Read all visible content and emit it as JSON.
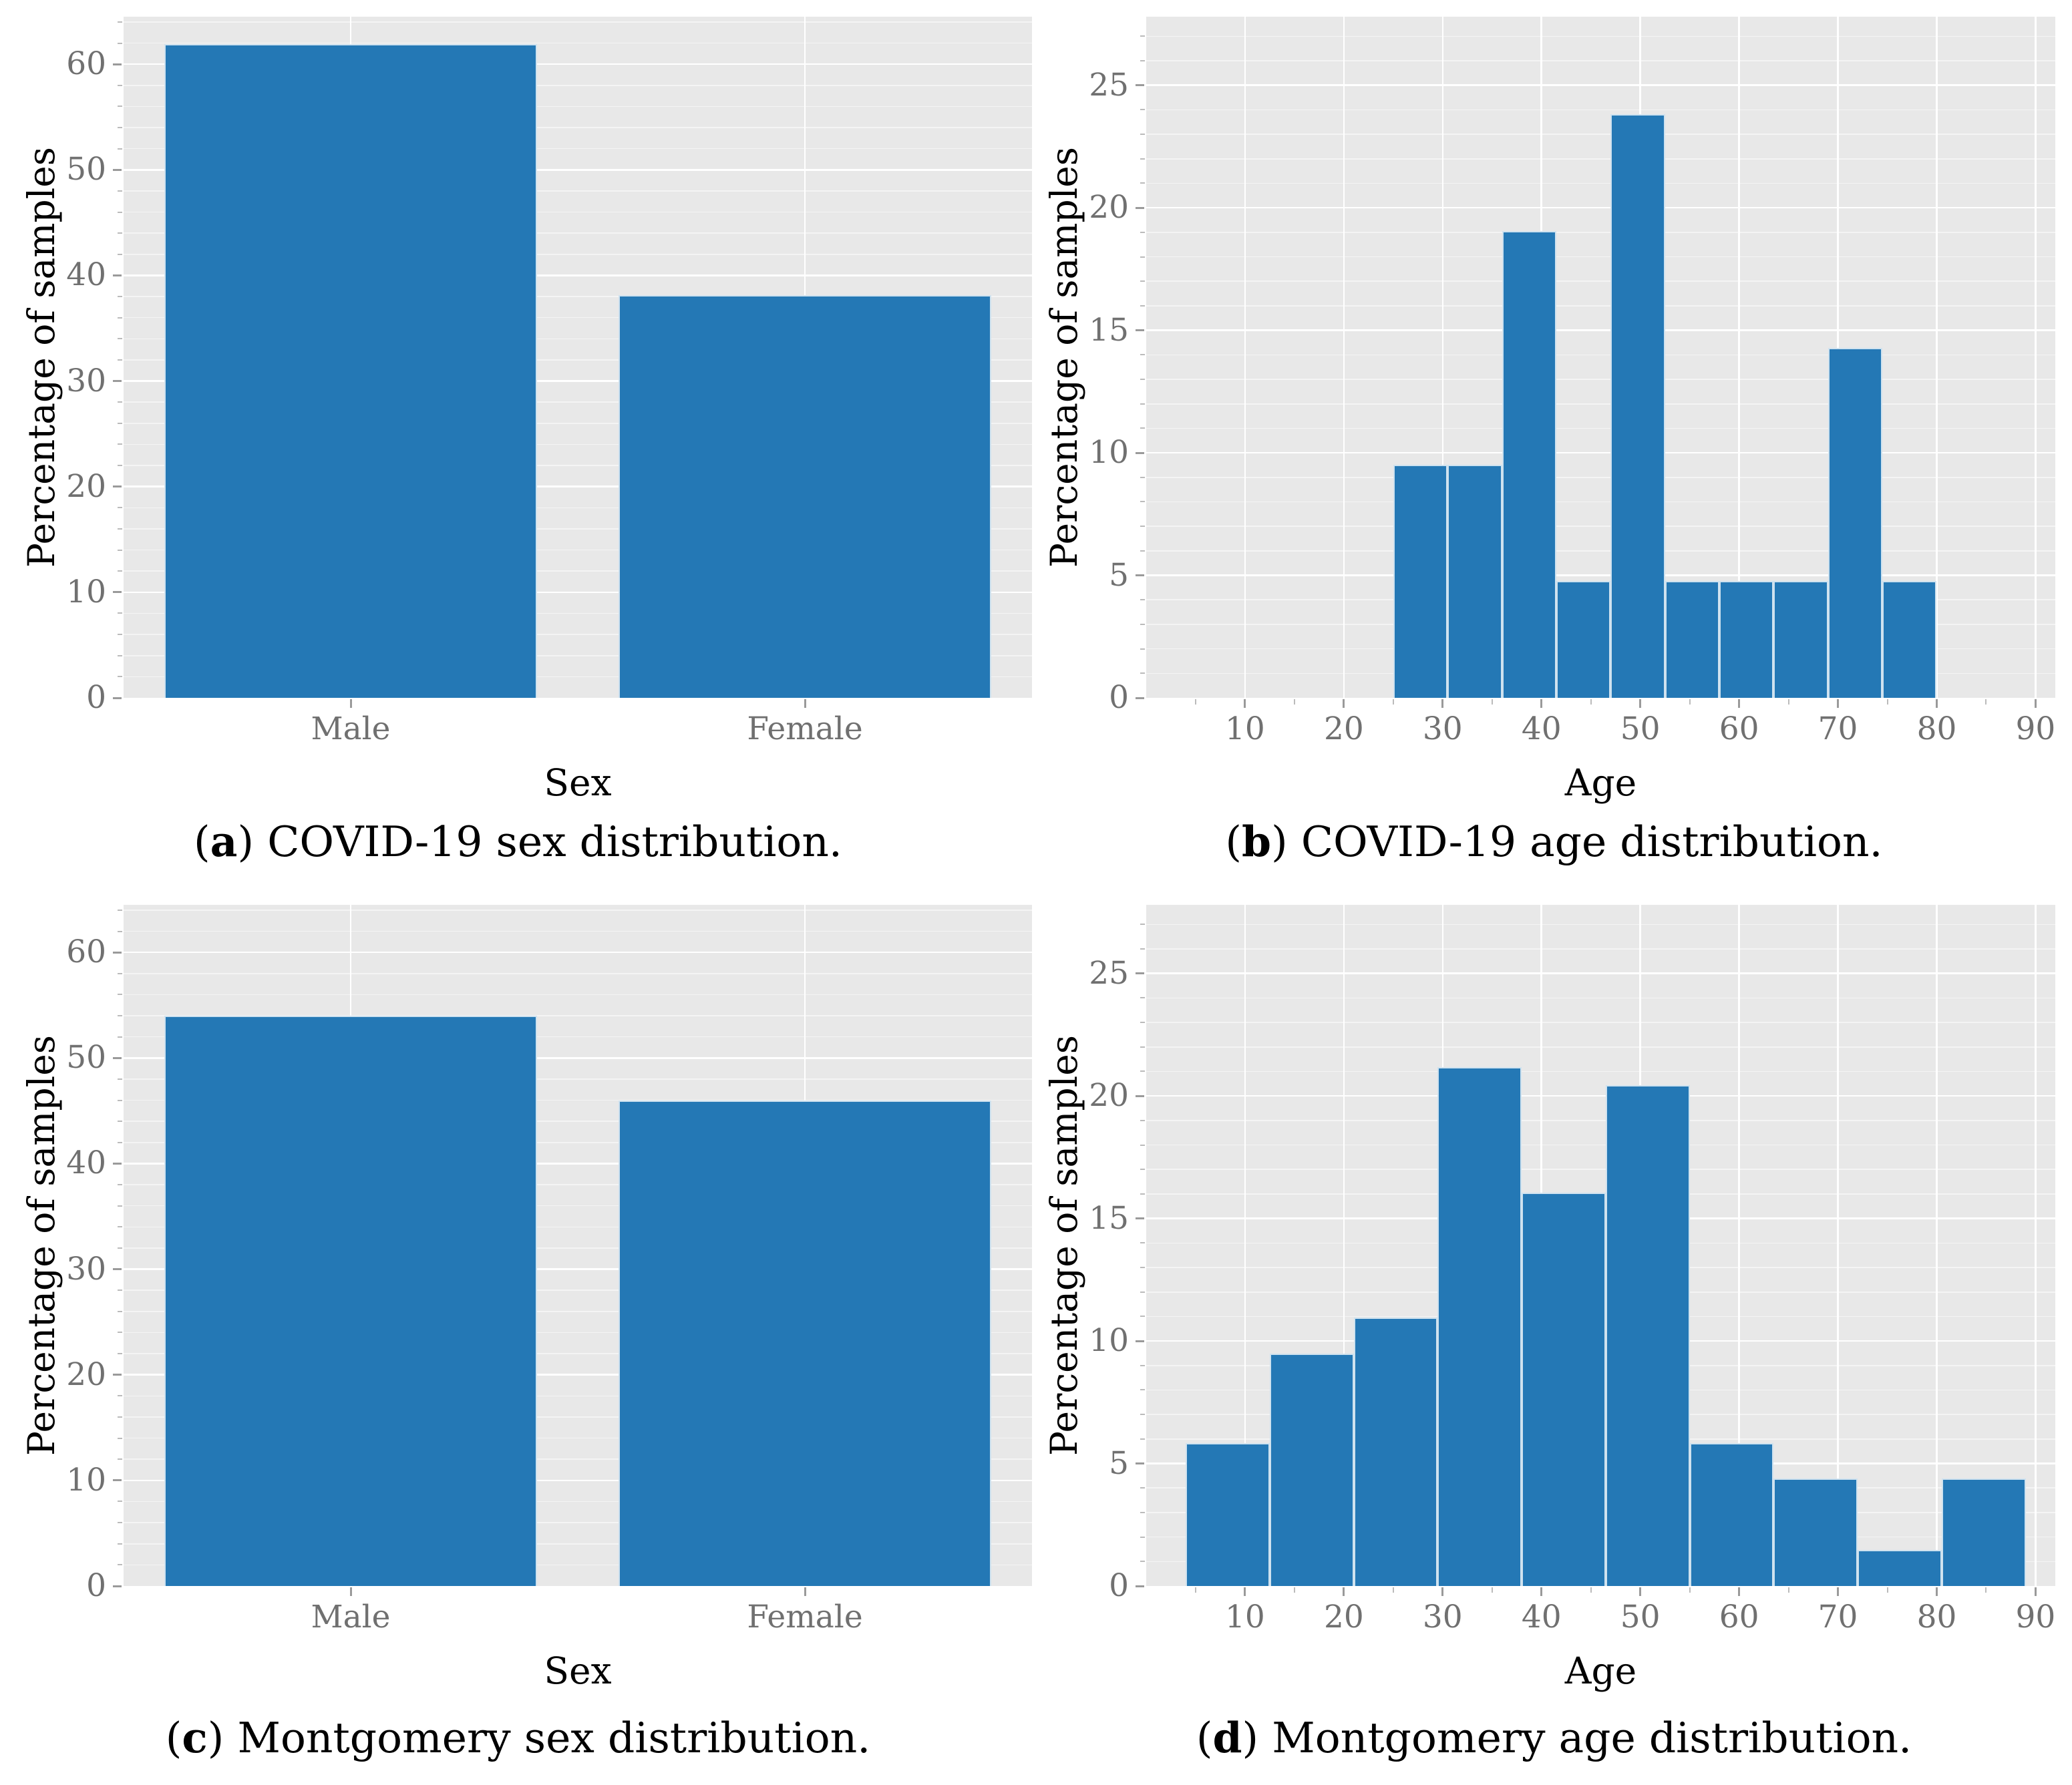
{
  "style": {
    "bar_color": "#2478b5",
    "bar_edge_color": "#cfe2ef",
    "panel_bg": "#e8e8e8",
    "grid_major_color": "#ffffff",
    "grid_minor_color": "#f4f4f4",
    "tick_label_color": "#707070",
    "tick_mark_major_color": "#9a9a9a",
    "tick_mark_minor_color": "#bbbbbb",
    "text_color": "#000000",
    "page_bg": "#ffffff"
  },
  "chart_data": [
    {
      "id": "a",
      "type": "bar",
      "title": "COVID-19 sex distribution",
      "categories": [
        "Male",
        "Female"
      ],
      "values": [
        61.9,
        38.1
      ],
      "xlabel": "Sex",
      "ylabel": "Percentage of samples",
      "ylim": [
        0,
        64.5
      ],
      "yticks": [
        0,
        10,
        20,
        30,
        40,
        50,
        60
      ],
      "y_minor_step": 2,
      "grid": "major+minor",
      "legend": "none",
      "caption": {
        "open": "(",
        "letter": "a",
        "close": ")",
        "text": "COVID-19 sex distribution."
      }
    },
    {
      "id": "b",
      "type": "histogram",
      "title": "COVID-19 age distribution",
      "bin_start": 25,
      "bin_width": 5.5,
      "values": [
        9.52,
        9.52,
        19.05,
        4.76,
        23.81,
        4.76,
        4.76,
        4.76,
        14.29,
        4.76
      ],
      "xlabel": "Age",
      "ylabel": "Percentage of samples",
      "xlim": [
        0,
        92
      ],
      "xticks": [
        10,
        20,
        30,
        40,
        50,
        60,
        70,
        80,
        90
      ],
      "x_minor_step": 5,
      "ylim": [
        0,
        27.8
      ],
      "yticks": [
        0,
        5,
        10,
        15,
        20,
        25
      ],
      "y_minor_step": 1,
      "grid": "major+minor",
      "legend": "none",
      "caption": {
        "open": "(",
        "letter": "b",
        "close": ")",
        "text": "COVID-19 age distribution."
      }
    },
    {
      "id": "c",
      "type": "bar",
      "title": "Montgomery sex distribution",
      "categories": [
        "Male",
        "Female"
      ],
      "values": [
        54.0,
        46.0
      ],
      "xlabel": "Sex",
      "ylabel": "Percentage of samples",
      "ylim": [
        0,
        64.5
      ],
      "yticks": [
        0,
        10,
        20,
        30,
        40,
        50,
        60
      ],
      "y_minor_step": 2,
      "grid": "major+minor",
      "legend": "none",
      "caption": {
        "open": "(",
        "letter": "c",
        "close": ")",
        "text": "Montgomery sex distribution."
      }
    },
    {
      "id": "d",
      "type": "histogram",
      "title": "Montgomery age distribution",
      "bin_start": 4,
      "bin_width": 8.5,
      "values": [
        5.84,
        9.49,
        10.95,
        21.17,
        16.06,
        20.44,
        5.84,
        4.38,
        1.46,
        4.38
      ],
      "xlabel": "Age",
      "ylabel": "Percentage of samples",
      "xlim": [
        0,
        92
      ],
      "xticks": [
        10,
        20,
        30,
        40,
        50,
        60,
        70,
        80,
        90
      ],
      "x_minor_step": 5,
      "ylim": [
        0,
        27.8
      ],
      "yticks": [
        0,
        5,
        10,
        15,
        20,
        25
      ],
      "y_minor_step": 1,
      "grid": "major+minor",
      "legend": "none",
      "caption": {
        "open": "(",
        "letter": "d",
        "close": ")",
        "text": "Montgomery age distribution."
      }
    }
  ]
}
